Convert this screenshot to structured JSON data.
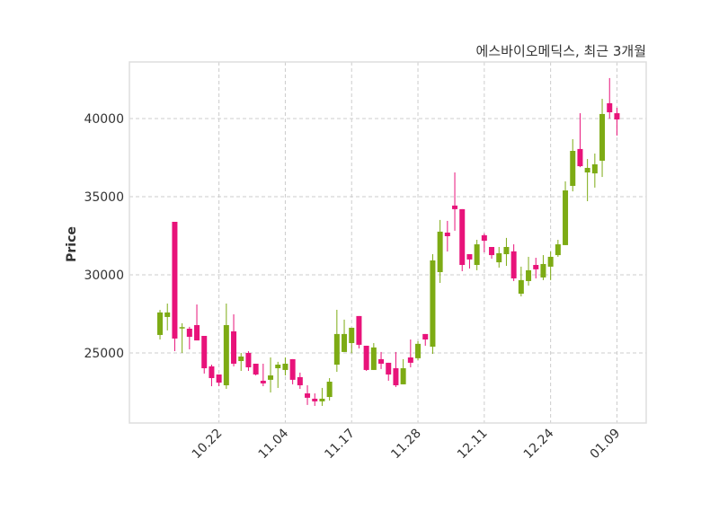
{
  "chart_data": {
    "type": "candlestick",
    "title": "에스바이오메딕스, 최근 3개월",
    "xlabel": "",
    "ylabel": "Price",
    "ylim": [
      20515,
      43620
    ],
    "xlim": [
      -4.15,
      65.97
    ],
    "grid": true,
    "colors": {
      "up": "#7dab14",
      "down": "#e8137a",
      "grid": "#cccccc",
      "frame": "#dddddd"
    },
    "yticks": [
      25000,
      30000,
      35000,
      40000
    ],
    "xticks": [
      {
        "index": 8,
        "label": "10.22"
      },
      {
        "index": 17,
        "label": "11.04"
      },
      {
        "index": 26,
        "label": "11.17"
      },
      {
        "index": 35,
        "label": "11.28"
      },
      {
        "index": 44,
        "label": "12.11"
      },
      {
        "index": 53,
        "label": "12.24"
      },
      {
        "index": 62,
        "label": "01.09"
      }
    ],
    "ohlc": [
      [
        26150,
        27750,
        25860,
        27590
      ],
      [
        27300,
        28160,
        26440,
        27590
      ],
      [
        33390,
        33390,
        25110,
        25920
      ],
      [
        26600,
        26900,
        25000,
        26650
      ],
      [
        26550,
        26670,
        25230,
        26030
      ],
      [
        26780,
        28100,
        25800,
        25800
      ],
      [
        26090,
        26090,
        23680,
        24020
      ],
      [
        24140,
        24250,
        22870,
        23390
      ],
      [
        23620,
        23620,
        22870,
        23100
      ],
      [
        22930,
        28160,
        22700,
        26780
      ],
      [
        26380,
        27470,
        24140,
        24310
      ],
      [
        24480,
        25000,
        23850,
        24770
      ],
      [
        25000,
        25110,
        23850,
        24080
      ],
      [
        24310,
        24310,
        23560,
        23620
      ],
      [
        23220,
        24310,
        22870,
        23050
      ],
      [
        23280,
        24710,
        22470,
        23560
      ],
      [
        24020,
        24430,
        22760,
        24250
      ],
      [
        23910,
        24710,
        23560,
        24310
      ],
      [
        24600,
        24600,
        22990,
        23280
      ],
      [
        23450,
        23740,
        22700,
        22930
      ],
      [
        22410,
        22930,
        21670,
        22130
      ],
      [
        22070,
        22410,
        21610,
        21900
      ],
      [
        21900,
        22760,
        21610,
        22070
      ],
      [
        22180,
        23390,
        21950,
        23160
      ],
      [
        24250,
        27760,
        23790,
        26210
      ],
      [
        25060,
        27130,
        25060,
        26210
      ],
      [
        25630,
        26610,
        24980,
        26610
      ],
      [
        27360,
        27360,
        25290,
        25520
      ],
      [
        25460,
        25460,
        23850,
        23910
      ],
      [
        23910,
        25630,
        23910,
        25350
      ],
      [
        24600,
        25060,
        23970,
        24310
      ],
      [
        24370,
        24370,
        23220,
        23620
      ],
      [
        24020,
        25060,
        22820,
        22930
      ],
      [
        22990,
        24600,
        22990,
        24020
      ],
      [
        24710,
        25860,
        24080,
        24370
      ],
      [
        24660,
        25750,
        24540,
        25580
      ],
      [
        26210,
        26210,
        25460,
        25860
      ],
      [
        25400,
        31320,
        24940,
        30920
      ],
      [
        30170,
        33510,
        29480,
        32760
      ],
      [
        32700,
        33450,
        31490,
        32470
      ],
      [
        34430,
        36550,
        32820,
        34200
      ],
      [
        34200,
        34200,
        30230,
        30630
      ],
      [
        31320,
        31320,
        30400,
        30980
      ],
      [
        30630,
        32240,
        30290,
        31950
      ],
      [
        32530,
        32640,
        31440,
        32180
      ],
      [
        31780,
        31780,
        31030,
        31260
      ],
      [
        30800,
        31780,
        30460,
        31380
      ],
      [
        31320,
        32360,
        30570,
        31780
      ],
      [
        31500,
        31950,
        29600,
        29770
      ],
      [
        28790,
        30520,
        28620,
        29660
      ],
      [
        29600,
        31150,
        29310,
        30290
      ],
      [
        30630,
        31090,
        29770,
        30350
      ],
      [
        29830,
        31260,
        29660,
        30690
      ],
      [
        30520,
        31490,
        29660,
        31150
      ],
      [
        31260,
        32240,
        31150,
        31950
      ],
      [
        31900,
        35980,
        31900,
        35400
      ],
      [
        35690,
        38680,
        35340,
        37930
      ],
      [
        38050,
        40340,
        36890,
        36950
      ],
      [
        36550,
        37410,
        34710,
        36840
      ],
      [
        36490,
        37760,
        35580,
        37070
      ],
      [
        37300,
        41260,
        36260,
        40290
      ],
      [
        40980,
        42590,
        39990,
        40400
      ],
      [
        40340,
        40690,
        38910,
        39940
      ]
    ]
  }
}
